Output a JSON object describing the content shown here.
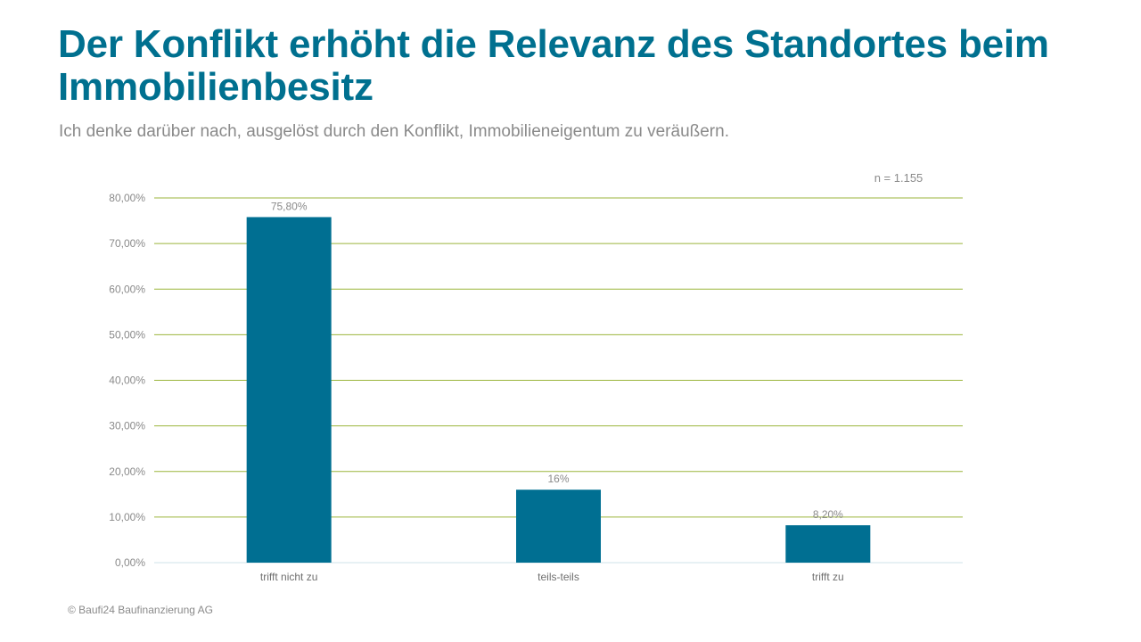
{
  "slide": {
    "title": "Der Konflikt erhöht die Relevanz des Standortes beim Immobilienbesitz",
    "subtitle": "Ich denke darüber nach, ausgelöst durch den Konflikt, Immobilieneigentum  zu veräußern.",
    "footer": "© Baufi24 Baufinanzierung AG"
  },
  "chart_data": {
    "type": "bar",
    "annotation": "n = 1.155",
    "categories": [
      "trifft nicht zu",
      "teils-teils",
      "trifft zu"
    ],
    "values": [
      75.8,
      16,
      8.2
    ],
    "data_labels": [
      "75,80%",
      "16%",
      "8,20%"
    ],
    "ylim": [
      0,
      80
    ],
    "yticks": [
      0,
      10,
      20,
      30,
      40,
      50,
      60,
      70,
      80
    ],
    "ytick_labels": [
      "0,00%",
      "10,00%",
      "20,00%",
      "30,00%",
      "40,00%",
      "50,00%",
      "60,00%",
      "70,00%",
      "80,00%"
    ],
    "grid": true,
    "legend": "none",
    "colors": {
      "bar": "#006f92",
      "grid": "#9bb53c",
      "baseline": "#cfe3ea",
      "label": "#8a8a8a"
    }
  }
}
